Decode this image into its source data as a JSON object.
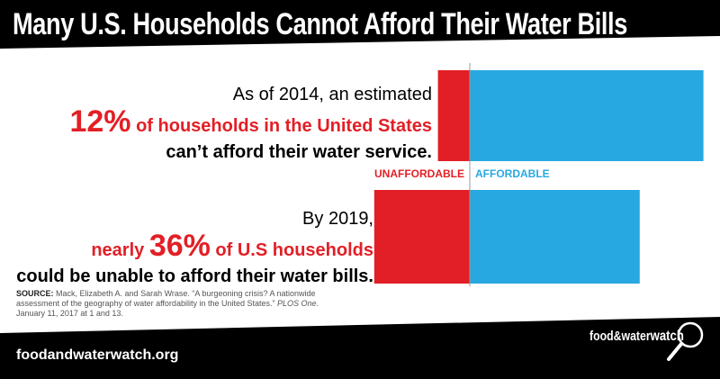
{
  "title": "Many U.S. Households Cannot Afford Their Water Bills",
  "statement1": {
    "line1": "As of 2014, an estimated",
    "pct": "12%",
    "line2_rest": " of households in the United States",
    "line3": "can’t afford their water service."
  },
  "statement2": {
    "line1": "By 2019,",
    "pre": "nearly ",
    "pct": "36%",
    "line2_rest": " of U.S households",
    "line3": "could be unable to afford their water bills."
  },
  "chart_data": {
    "type": "bar",
    "categories": [
      "2014",
      "2019"
    ],
    "series": [
      {
        "name": "UNAFFORDABLE",
        "values": [
          12,
          36
        ]
      },
      {
        "name": "AFFORDABLE",
        "values": [
          88,
          64
        ]
      }
    ],
    "colors": {
      "UNAFFORDABLE": "#e21f26",
      "AFFORDABLE": "#27a8e0"
    }
  },
  "labels": {
    "unaffordable": "UNAFFORDABLE",
    "affordable": "AFFORDABLE"
  },
  "source": {
    "label": "SOURCE:",
    "text": " Mack, Elizabeth A. and Sarah Wrase. “A burgeoning crisis? A nationwide assessment of the geography of water affordability in the United States.”",
    "journal": "PLOS One",
    "date": ". January 11, 2017 at 1 and 13."
  },
  "footer": {
    "url": "foodandwaterwatch.org",
    "logo_main": "food&water",
    "logo_watch": "watch"
  }
}
